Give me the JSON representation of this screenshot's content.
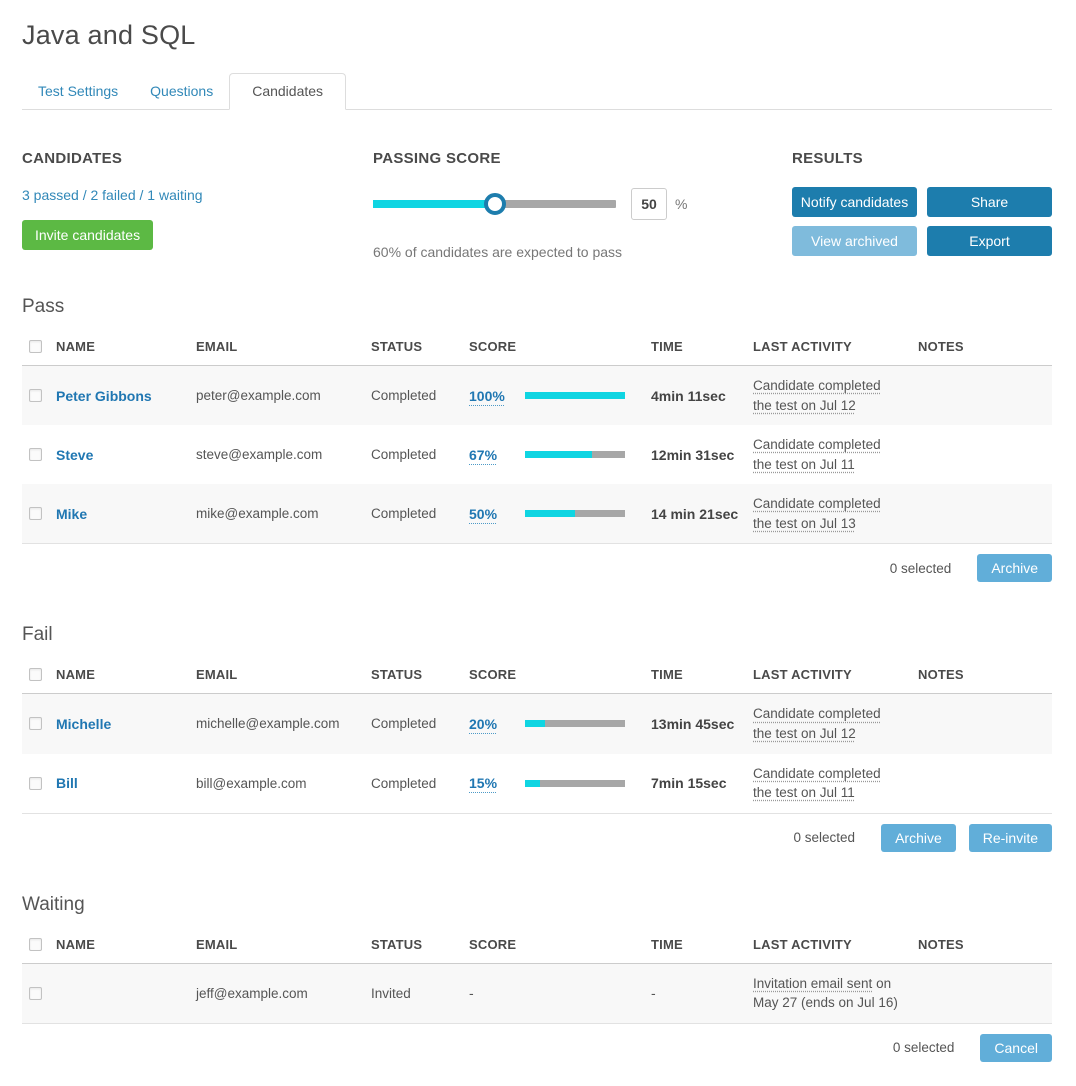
{
  "page": {
    "title": "Java and SQL"
  },
  "tabs": [
    {
      "label": "Test Settings",
      "active": false
    },
    {
      "label": "Questions",
      "active": false
    },
    {
      "label": "Candidates",
      "active": true
    }
  ],
  "candidates_panel": {
    "heading": "CANDIDATES",
    "summary": "3 passed / 2 failed / 1 waiting",
    "invite_button": "Invite candidates"
  },
  "passing_score": {
    "heading": "PASSING SCORE",
    "slider_percent": 50,
    "value": "50",
    "unit": "%",
    "note": "60% of candidates are expected to pass"
  },
  "results": {
    "heading": "RESULTS",
    "buttons": [
      {
        "label": "Notify candidates",
        "style": "dark"
      },
      {
        "label": "Share",
        "style": "dark"
      },
      {
        "label": "View archived",
        "style": "light"
      },
      {
        "label": "Export",
        "style": "dark"
      }
    ]
  },
  "columns": [
    "NAME",
    "EMAIL",
    "STATUS",
    "SCORE",
    "TIME",
    "LAST ACTIVITY",
    "NOTES"
  ],
  "sections": [
    {
      "title": "Pass",
      "rows": [
        {
          "name": "Peter Gibbons",
          "email": "peter@example.com",
          "status": "Completed",
          "score_label": "100%",
          "score_pct": 100,
          "time": "4min 11sec",
          "activity": [
            {
              "text": "Candidate completed the test on Jul 12",
              "tooltip": true
            }
          ]
        },
        {
          "name": "Steve",
          "email": "steve@example.com",
          "status": "Completed",
          "score_label": "67%",
          "score_pct": 67,
          "time": "12min 31sec",
          "activity": [
            {
              "text": "Candidate completed the test on Jul 11",
              "tooltip": true
            }
          ]
        },
        {
          "name": "Mike",
          "email": "mike@example.com",
          "status": "Completed",
          "score_label": "50%",
          "score_pct": 50,
          "time": "14 min 21sec",
          "activity": [
            {
              "text": "Candidate completed the test on Jul 13",
              "tooltip": true
            }
          ]
        }
      ],
      "footer": {
        "selected": "0 selected",
        "buttons": [
          "Archive"
        ]
      }
    },
    {
      "title": "Fail",
      "rows": [
        {
          "name": "Michelle",
          "email": "michelle@example.com",
          "status": "Completed",
          "score_label": "20%",
          "score_pct": 20,
          "time": "13min 45sec",
          "activity": [
            {
              "text": "Candidate completed the test on Jul 12",
              "tooltip": true
            }
          ]
        },
        {
          "name": "Bill",
          "email": "bill@example.com",
          "status": "Completed",
          "score_label": "15%",
          "score_pct": 15,
          "time": "7min 15sec",
          "activity": [
            {
              "text": "Candidate completed the test on Jul 11",
              "tooltip": true
            }
          ]
        }
      ],
      "footer": {
        "selected": "0 selected",
        "buttons": [
          "Archive",
          "Re-invite"
        ]
      }
    },
    {
      "title": "Waiting",
      "rows": [
        {
          "name": "",
          "email": "jeff@example.com",
          "status": "Invited",
          "score_label": "-",
          "score_pct": null,
          "time": "-",
          "activity": [
            {
              "text": "Invitation email sent",
              "tooltip": true
            },
            {
              "text": " on May 27 (ends on Jul 16)",
              "tooltip": false
            }
          ]
        }
      ],
      "footer": {
        "selected": "0 selected",
        "buttons": [
          "Cancel"
        ]
      }
    }
  ],
  "colors": {
    "accent_cyan": "#0fd5e2",
    "link_blue": "#2077b2",
    "button_dark_blue": "#1d7dad",
    "button_light_blue": "#61aed9",
    "button_green": "#5cb944",
    "bar_gray": "#a7a7a7"
  }
}
